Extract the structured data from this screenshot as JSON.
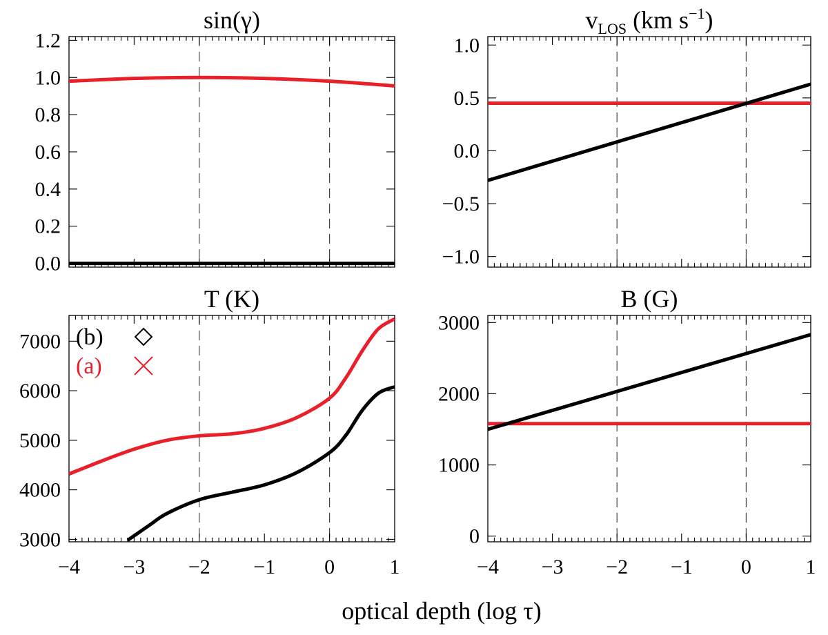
{
  "figure": {
    "shared_xlabel": "optical depth (log τ)"
  },
  "colors": {
    "a": "#e8202a",
    "b": "#000000",
    "axis": "#000000",
    "guide": "#444444"
  },
  "legend": {
    "entries": [
      {
        "label": "(b)",
        "symbol": "◇",
        "series": "b"
      },
      {
        "label": "(a)",
        "symbol": "✕",
        "series": "a"
      }
    ]
  },
  "chart_data": [
    {
      "id": "sin_gamma",
      "type": "line",
      "title": "sin(γ)",
      "xlim": [
        -4,
        1
      ],
      "ylim": [
        -0.02,
        1.22
      ],
      "xticks": [
        -4,
        -3,
        -2,
        -1,
        0,
        1
      ],
      "yticks": [
        0.0,
        0.2,
        0.4,
        0.6,
        0.8,
        1.0,
        1.2
      ],
      "ytick_labels": [
        "0.0",
        "0.2",
        "0.4",
        "0.6",
        "0.8",
        "1.0",
        "1.2"
      ],
      "show_xtick_labels": false,
      "vlines": [
        -2,
        0
      ],
      "series": [
        {
          "name": "a",
          "x": [
            -4,
            -3,
            -2,
            -1,
            0,
            1
          ],
          "y": [
            0.98,
            0.995,
            1.0,
            0.995,
            0.98,
            0.955
          ]
        },
        {
          "name": "b",
          "x": [
            -4,
            1
          ],
          "y": [
            0.0,
            0.0
          ]
        }
      ]
    },
    {
      "id": "v_los",
      "type": "line",
      "title_main": "v",
      "title_sub": "LOS",
      "title_unit": " (km s",
      "title_sup": "−1",
      "title_close": ")",
      "xlim": [
        -4,
        1
      ],
      "ylim": [
        -1.1,
        1.08
      ],
      "xticks": [
        -4,
        -3,
        -2,
        -1,
        0,
        1
      ],
      "yticks": [
        -1.0,
        -0.5,
        0.0,
        0.5,
        1.0
      ],
      "ytick_labels": [
        "−1.0",
        "−0.5",
        "0.0",
        "0.5",
        "1.0"
      ],
      "show_xtick_labels": false,
      "vlines": [
        -2,
        0
      ],
      "series": [
        {
          "name": "a",
          "x": [
            -4,
            1
          ],
          "y": [
            0.45,
            0.45
          ]
        },
        {
          "name": "b",
          "x": [
            -4,
            1
          ],
          "y": [
            -0.28,
            0.63
          ]
        }
      ]
    },
    {
      "id": "temperature",
      "type": "line",
      "title": "T (K)",
      "xlim": [
        -4,
        1
      ],
      "ylim": [
        2950,
        7520
      ],
      "xticks": [
        -4,
        -3,
        -2,
        -1,
        0,
        1
      ],
      "xtick_labels": [
        "−4",
        "−3",
        "−2",
        "−1",
        "0",
        "1"
      ],
      "yticks": [
        3000,
        4000,
        5000,
        6000,
        7000
      ],
      "ytick_labels": [
        "3000",
        "4000",
        "5000",
        "6000",
        "7000"
      ],
      "show_xtick_labels": true,
      "vlines": [
        -2,
        0
      ],
      "legend": true,
      "series": [
        {
          "name": "a",
          "x": [
            -4,
            -3.5,
            -3,
            -2.5,
            -2,
            -1.5,
            -1,
            -0.5,
            0,
            0.25,
            0.5,
            0.75,
            1
          ],
          "y": [
            4320,
            4580,
            4820,
            5000,
            5090,
            5130,
            5240,
            5460,
            5850,
            6260,
            6800,
            7250,
            7450
          ]
        },
        {
          "name": "b",
          "x": [
            -3.1,
            -2.75,
            -2.5,
            -2,
            -1.5,
            -1,
            -0.5,
            0,
            0.25,
            0.5,
            0.75,
            1
          ],
          "y": [
            2980,
            3300,
            3520,
            3800,
            3950,
            4100,
            4350,
            4750,
            5100,
            5600,
            5950,
            6080
          ]
        }
      ]
    },
    {
      "id": "b_field",
      "type": "line",
      "title": "B (G)",
      "xlim": [
        -4,
        1
      ],
      "ylim": [
        -80,
        3100
      ],
      "xticks": [
        -4,
        -3,
        -2,
        -1,
        0,
        1
      ],
      "xtick_labels": [
        "−4",
        "−3",
        "−2",
        "−1",
        "0",
        "1"
      ],
      "yticks": [
        0,
        1000,
        2000,
        3000
      ],
      "ytick_labels": [
        "0",
        "1000",
        "2000",
        "3000"
      ],
      "show_xtick_labels": true,
      "vlines": [
        -2,
        0
      ],
      "series": [
        {
          "name": "a",
          "x": [
            -4,
            1
          ],
          "y": [
            1580,
            1580
          ]
        },
        {
          "name": "b",
          "x": [
            -4,
            1
          ],
          "y": [
            1500,
            2830
          ]
        }
      ]
    }
  ]
}
